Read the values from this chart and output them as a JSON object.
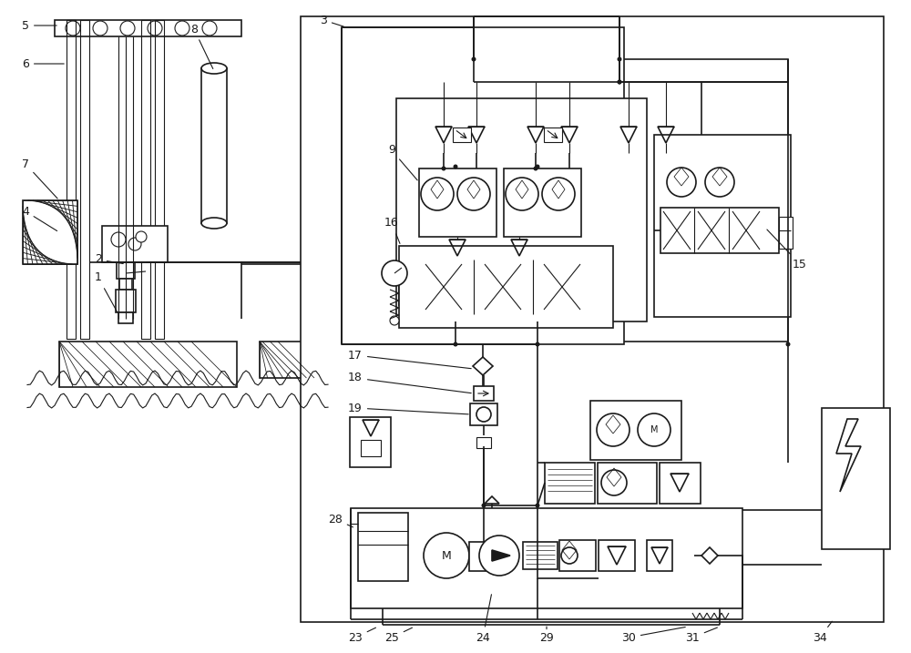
{
  "bg_color": "#ffffff",
  "lc": "#1a1a1a",
  "lw": 1.2,
  "tlw": 0.8,
  "fig_w": 10.0,
  "fig_h": 7.17,
  "dpi": 100
}
